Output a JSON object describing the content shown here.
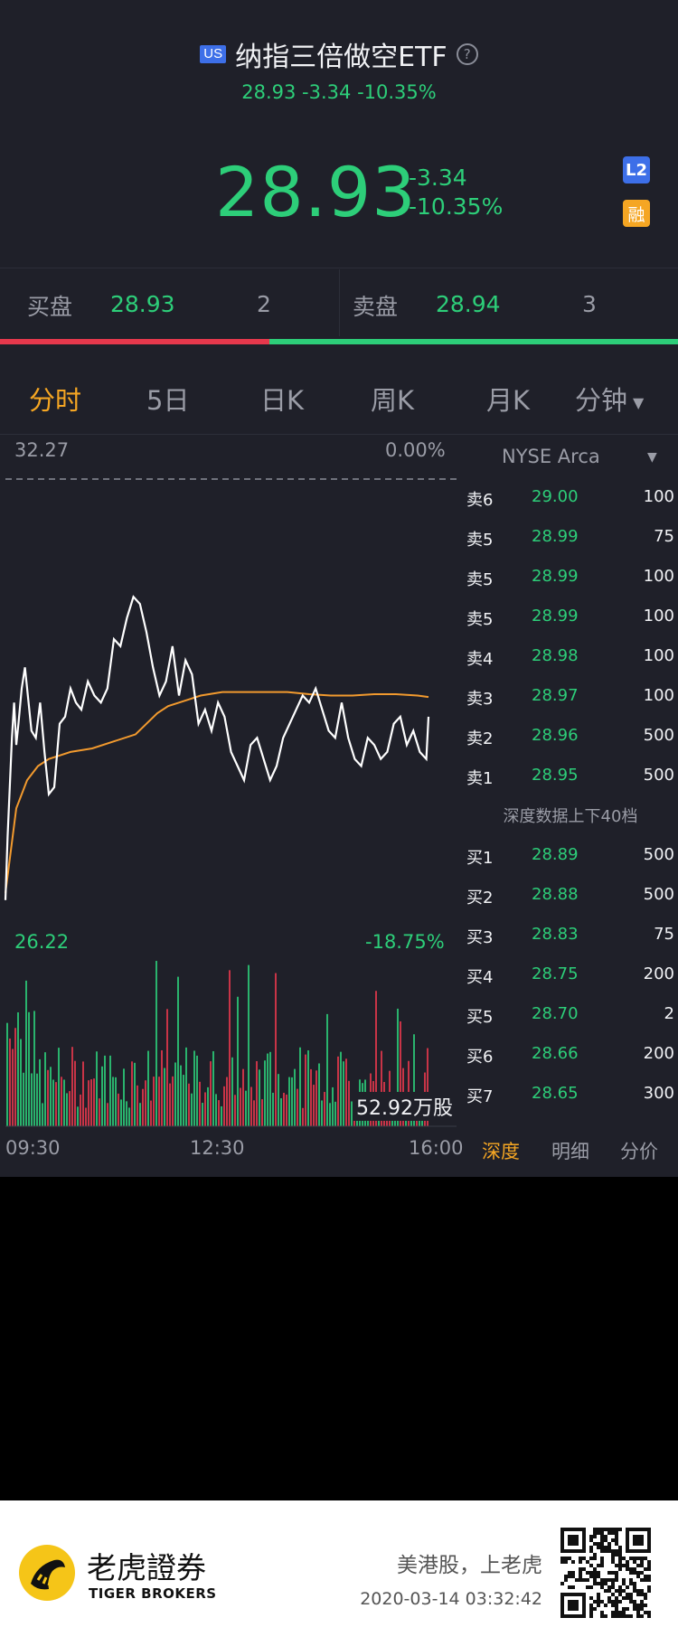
{
  "header": {
    "market_badge": "US",
    "title": "纳指三倍做空ETF",
    "help_icon": "question-circle-icon",
    "subquote": "28.93 -3.34 -10.35%",
    "price": "28.93",
    "change": "-3.34",
    "change_pct": "-10.35%",
    "level2_badge": "L2",
    "margin_badge": "融"
  },
  "bid_ask": {
    "bid_label": "买盘",
    "bid_price": "28.93",
    "bid_qty": "2",
    "ask_label": "卖盘",
    "ask_price": "28.94",
    "ask_qty": "3",
    "bid_ratio": 0.4
  },
  "tabs": [
    {
      "label": "分时",
      "active": true
    },
    {
      "label": "5日",
      "active": false
    },
    {
      "label": "日K",
      "active": false
    },
    {
      "label": "周K",
      "active": false
    },
    {
      "label": "月K",
      "active": false
    },
    {
      "label": "分钟",
      "active": false
    }
  ],
  "chart": {
    "top_price": "32.27",
    "top_pct": "0.00%",
    "bottom_price": "26.22",
    "bottom_pct": "-18.75%",
    "volume_label": "52.92万股",
    "time_start": "09:30",
    "time_mid": "12:30",
    "time_end": "16:00"
  },
  "chart_data": {
    "type": "line",
    "ylim": [
      26.22,
      32.27
    ],
    "reference_price": 32.27,
    "series": [
      {
        "x": [
          0,
          2,
          4,
          6,
          8,
          10,
          12,
          15,
          18,
          20,
          24,
          28,
          32,
          36,
          40,
          45,
          50,
          55,
          60,
          65,
          70,
          76,
          82,
          88,
          94,
          100,
          106,
          112,
          118,
          124,
          130,
          136,
          142,
          148,
          154,
          160,
          166,
          172,
          178,
          184,
          190,
          196,
          202,
          208,
          214,
          220,
          226,
          232,
          238,
          244,
          250,
          256,
          262,
          268,
          274,
          280,
          286,
          292,
          298,
          304,
          310,
          316,
          322,
          328,
          334,
          340,
          346,
          352,
          358,
          364,
          370,
          376,
          382,
          388,
          390
        ],
        "values": [
          26.3,
          27.2,
          27.9,
          28.6,
          29.1,
          28.5,
          28.8,
          29.3,
          29.6,
          29.3,
          28.7,
          28.6,
          29.1,
          28.4,
          27.8,
          27.9,
          28.8,
          28.9,
          29.3,
          29.1,
          29.0,
          29.4,
          29.2,
          29.1,
          29.3,
          30.0,
          29.9,
          30.3,
          30.6,
          30.5,
          30.1,
          29.6,
          29.2,
          29.4,
          29.9,
          29.2,
          29.7,
          29.5,
          28.8,
          29.0,
          28.7,
          29.1,
          28.9,
          28.4,
          28.2,
          28.0,
          28.5,
          28.6,
          28.3,
          28.0,
          28.2,
          28.6,
          28.8,
          29.0,
          29.2,
          29.1,
          29.3,
          29.0,
          28.7,
          28.6,
          29.1,
          28.6,
          28.3,
          28.2,
          28.6,
          28.5,
          28.3,
          28.4,
          28.8,
          28.9,
          28.5,
          28.7,
          28.4,
          28.3,
          28.9
        ],
        "name": "price",
        "color": "#ffffff"
      },
      {
        "x": [
          0,
          10,
          20,
          30,
          40,
          50,
          60,
          80,
          100,
          120,
          130,
          140,
          150,
          160,
          170,
          180,
          200,
          220,
          240,
          260,
          280,
          300,
          320,
          340,
          360,
          380,
          390
        ],
        "values": [
          26.4,
          27.6,
          28.0,
          28.2,
          28.3,
          28.35,
          28.4,
          28.45,
          28.55,
          28.65,
          28.8,
          28.95,
          29.05,
          29.1,
          29.15,
          29.2,
          29.25,
          29.25,
          29.25,
          29.25,
          29.22,
          29.2,
          29.2,
          29.22,
          29.22,
          29.2,
          29.18
        ],
        "name": "avg",
        "color": "#f29a2e"
      }
    ]
  },
  "order_book": {
    "exchange": "NYSE Arca",
    "asks": [
      {
        "label": "卖6",
        "price": "29.00",
        "qty": "100"
      },
      {
        "label": "卖5",
        "price": "28.99",
        "qty": "75"
      },
      {
        "label": "卖5",
        "price": "28.99",
        "qty": "100"
      },
      {
        "label": "卖5",
        "price": "28.99",
        "qty": "100"
      },
      {
        "label": "卖4",
        "price": "28.98",
        "qty": "100"
      },
      {
        "label": "卖3",
        "price": "28.97",
        "qty": "100"
      },
      {
        "label": "卖2",
        "price": "28.96",
        "qty": "500"
      },
      {
        "label": "卖1",
        "price": "28.95",
        "qty": "500"
      }
    ],
    "depth_note": "深度数据上下40档",
    "bids": [
      {
        "label": "买1",
        "price": "28.89",
        "qty": "500"
      },
      {
        "label": "买2",
        "price": "28.88",
        "qty": "500"
      },
      {
        "label": "买3",
        "price": "28.83",
        "qty": "75"
      },
      {
        "label": "买4",
        "price": "28.75",
        "qty": "200"
      },
      {
        "label": "买5",
        "price": "28.70",
        "qty": "2"
      },
      {
        "label": "买6",
        "price": "28.66",
        "qty": "200"
      },
      {
        "label": "买7",
        "price": "28.65",
        "qty": "300"
      }
    ],
    "tabs": [
      {
        "label": "深度",
        "active": true
      },
      {
        "label": "明细",
        "active": false
      },
      {
        "label": "分价",
        "active": false
      }
    ]
  },
  "footer": {
    "brand_cn": "老虎證券",
    "brand_en": "TIGER BROKERS",
    "slogan": "美港股，上老虎",
    "timestamp": "2020-03-14 03:32:42"
  },
  "colors": {
    "up": "#e6384c",
    "down": "#2dce79",
    "accent": "#f5a623",
    "bg": "#1f2029"
  }
}
